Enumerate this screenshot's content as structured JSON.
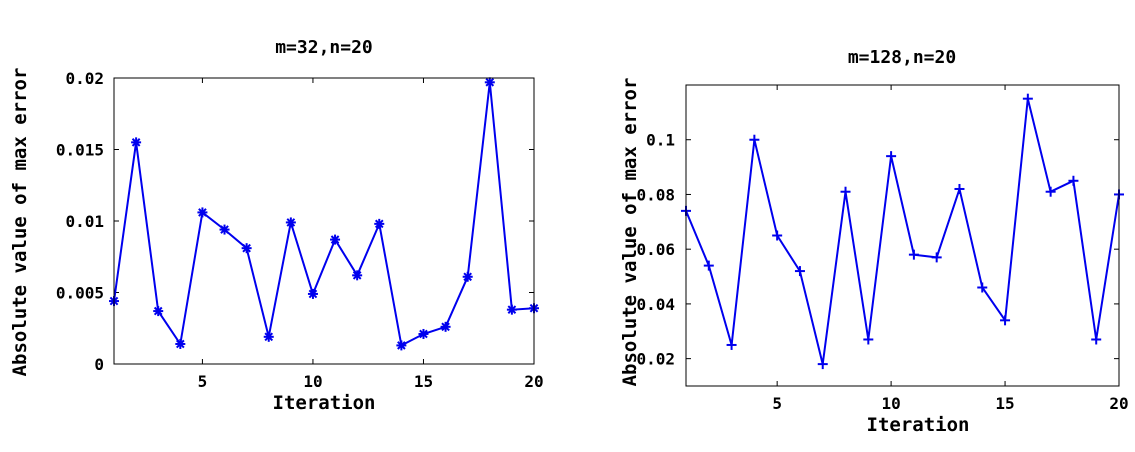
{
  "chart_data": [
    {
      "type": "line",
      "title": "m=32,n=20",
      "xlabel": "Iteration",
      "ylabel": "Absolute value of max error",
      "xlim": [
        1,
        20
      ],
      "ylim": [
        0,
        0.02
      ],
      "xticks": [
        5,
        10,
        15,
        20
      ],
      "xtick_labels": [
        "5",
        "10",
        "15",
        "20"
      ],
      "yticks": [
        0,
        0.005,
        0.01,
        0.015,
        0.02
      ],
      "ytick_labels": [
        "0",
        "0.005",
        "0.01",
        "0.015",
        "0.02"
      ],
      "grid": false,
      "marker": "asterisk",
      "color": "#0000ee",
      "series": [
        {
          "x": [
            1,
            2,
            3,
            4,
            5,
            6,
            7,
            8,
            9,
            10,
            11,
            12,
            13,
            14,
            15,
            16,
            17,
            18,
            19,
            20
          ],
          "values": [
            0.0044,
            0.0155,
            0.0037,
            0.0014,
            0.0106,
            0.0094,
            0.0081,
            0.0019,
            0.0099,
            0.0049,
            0.0087,
            0.0062,
            0.0098,
            0.0013,
            0.0021,
            0.0026,
            0.0061,
            0.0197,
            0.0038,
            0.0039
          ]
        }
      ]
    },
    {
      "type": "line",
      "title": "m=128,n=20",
      "xlabel": "Iteration",
      "ylabel": "Absolute value of max error",
      "xlim": [
        1,
        20
      ],
      "ylim": [
        0.01,
        0.12
      ],
      "xticks": [
        5,
        10,
        15,
        20
      ],
      "xtick_labels": [
        "5",
        "10",
        "15",
        "20"
      ],
      "yticks": [
        0.02,
        0.04,
        0.06,
        0.08,
        0.1
      ],
      "ytick_labels": [
        "0.02",
        "0.04",
        "0.06",
        "0.08",
        "0.1"
      ],
      "grid": false,
      "marker": "plus",
      "color": "#0000ee",
      "series": [
        {
          "x": [
            1,
            2,
            3,
            4,
            5,
            6,
            7,
            8,
            9,
            10,
            11,
            12,
            13,
            14,
            15,
            16,
            17,
            18,
            19,
            20
          ],
          "values": [
            0.074,
            0.054,
            0.025,
            0.1,
            0.065,
            0.052,
            0.018,
            0.081,
            0.027,
            0.094,
            0.058,
            0.057,
            0.082,
            0.046,
            0.034,
            0.115,
            0.081,
            0.085,
            0.027,
            0.08
          ]
        }
      ]
    }
  ]
}
